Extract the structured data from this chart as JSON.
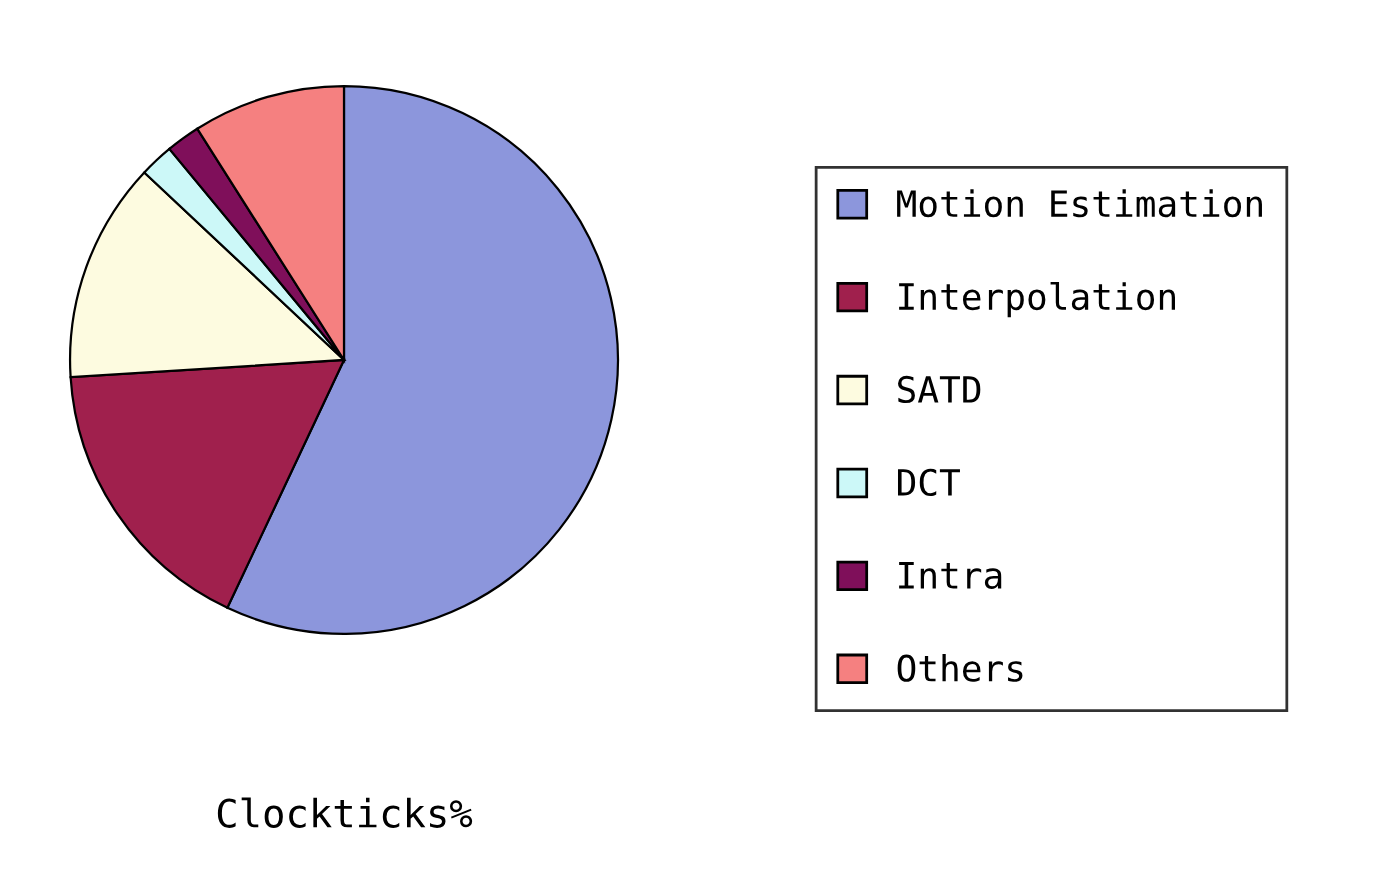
{
  "chart_data": {
    "type": "pie",
    "xlabel": "Clockticks%",
    "categories": [
      "Motion Estimation",
      "Interpolation",
      "SATD",
      "DCT",
      "Intra",
      "Others"
    ],
    "values": [
      57,
      17,
      13,
      2,
      2,
      9
    ],
    "colors": [
      "#8c96dc",
      "#a0204d",
      "#fdfbe0",
      "#ccf8f8",
      "#7f0f5a",
      "#f58080"
    ],
    "legend": "right"
  }
}
